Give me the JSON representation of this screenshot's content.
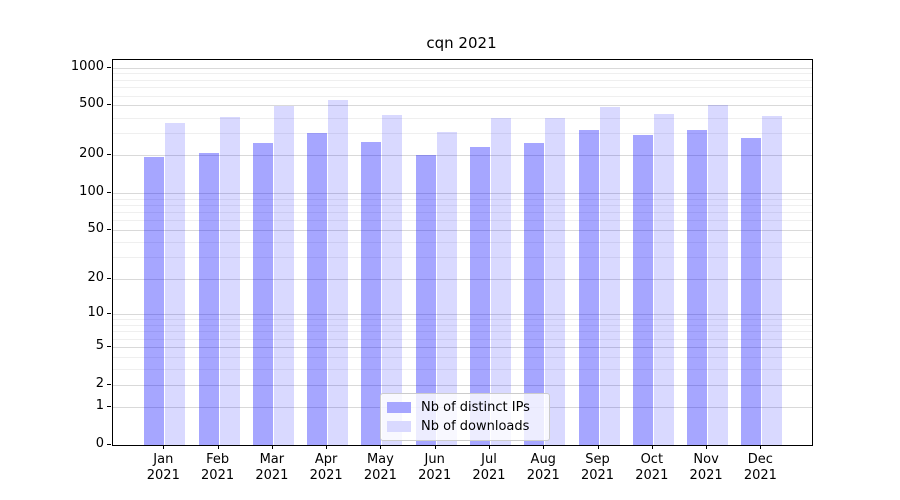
{
  "title": "cqn 2021",
  "chart_data": {
    "type": "bar",
    "title": "cqn 2021",
    "categories": [
      "Jan 2021",
      "Feb 2021",
      "Mar 2021",
      "Apr 2021",
      "May 2021",
      "Jun 2021",
      "Jul 2021",
      "Aug 2021",
      "Sep 2021",
      "Oct 2021",
      "Nov 2021",
      "Dec 2021"
    ],
    "series": [
      {
        "name": "Nb of distinct IPs",
        "color": "#a6a6ff",
        "rgba": "rgba(0,0,255,0.35)",
        "values": [
          195,
          210,
          250,
          300,
          255,
          200,
          235,
          250,
          320,
          290,
          320,
          275
        ]
      },
      {
        "name": "Nb of downloads",
        "color": "#d9d9ff",
        "rgba": "rgba(0,0,255,0.15)",
        "values": [
          365,
          405,
          500,
          550,
          420,
          305,
          400,
          400,
          485,
          430,
          505,
          415
        ]
      }
    ],
    "xlabel": "",
    "ylabel": "",
    "yscale": "log1p",
    "ylim": [
      0,
      1150
    ],
    "y_ticks": [
      1000,
      500,
      200,
      100,
      50,
      20,
      10,
      5,
      2,
      1,
      0
    ],
    "y_minor_gridlines": [
      3,
      4,
      6,
      7,
      8,
      9,
      30,
      40,
      60,
      70,
      80,
      90,
      300,
      400,
      600,
      700,
      800,
      900
    ],
    "grid": "horizontal major and minor gridlines",
    "legend_position": "lower center inside plot"
  },
  "legend": {
    "items": [
      {
        "label": "Nb of distinct IPs"
      },
      {
        "label": "Nb of downloads"
      }
    ]
  },
  "colors": {
    "bar_distinct_ips": "#a6a6ff",
    "bar_downloads": "#d9d9ff",
    "grid_major": "#d9d9d9",
    "grid_minor": "#efefef",
    "axis": "#000000",
    "legend_border": "#cccccc",
    "background": "#ffffff",
    "text": "#000000"
  }
}
